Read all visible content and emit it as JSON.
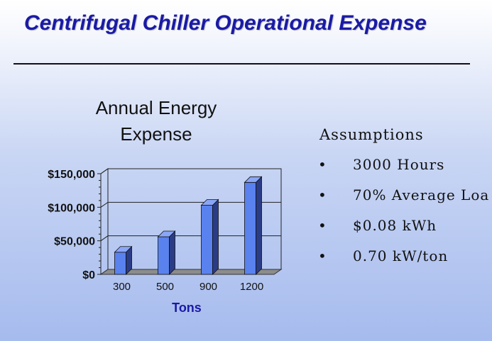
{
  "slide": {
    "title": "Centrifugal Chiller Operational Expense"
  },
  "assumptions": {
    "title": "Assumptions",
    "bullet": "•",
    "items": [
      "3000 Hours",
      "70% Average Loa",
      "$0.08 kWh",
      "0.70 kW/ton"
    ]
  },
  "colors": {
    "title_text": "#1a1aa6",
    "bar_front": "#5a82ee",
    "bar_side": "#2b3c86",
    "bar_top": "#8aa6f6",
    "floor": "#8c8c8c",
    "axis_label": "#1a1aa6"
  },
  "chart_data": {
    "type": "bar",
    "title": [
      "Annual Energy",
      "Expense"
    ],
    "categories": [
      "300",
      "500",
      "900",
      "1200"
    ],
    "values": [
      33000,
      56000,
      103000,
      137000
    ],
    "xlabel": "Tons",
    "ylabel": "",
    "ylim": [
      0,
      150000
    ],
    "yticks": [
      0,
      50000,
      100000,
      150000
    ],
    "ytick_labels": [
      "$0",
      "$50,000",
      "$100,000",
      "$150,000"
    ],
    "grid": true,
    "style": "3d"
  }
}
